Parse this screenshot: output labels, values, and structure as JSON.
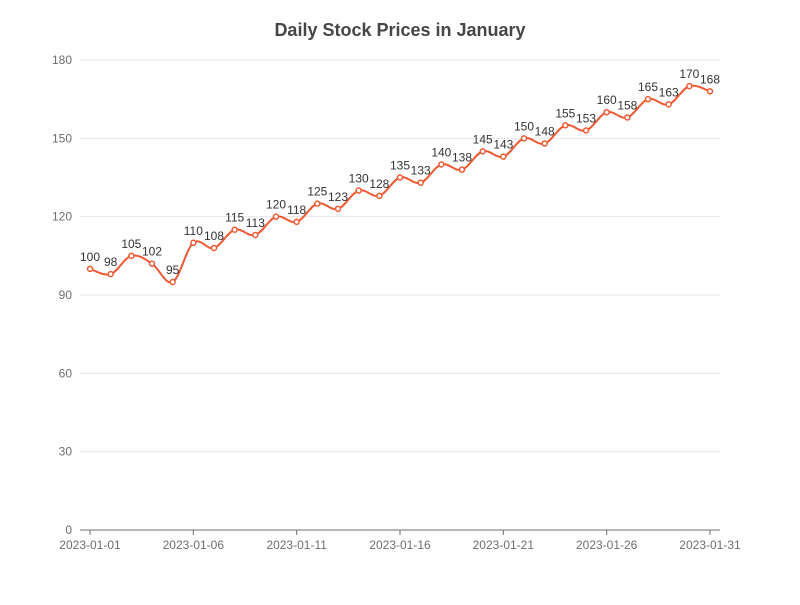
{
  "chart_data": {
    "type": "line",
    "title": "Daily Stock Prices in January",
    "xlabel": "",
    "ylabel": "",
    "ylim": [
      0,
      180
    ],
    "y_ticks": [
      0,
      30,
      60,
      90,
      120,
      150,
      180
    ],
    "x_tick_labels": [
      "2023-01-01",
      "2023-01-06",
      "2023-01-11",
      "2023-01-16",
      "2023-01-21",
      "2023-01-26",
      "2023-01-31"
    ],
    "grid": true,
    "legend": "none",
    "smooth": true,
    "series": [
      {
        "color": "#ee5a34",
        "x": [
          "2023-01-01",
          "2023-01-02",
          "2023-01-03",
          "2023-01-04",
          "2023-01-05",
          "2023-01-06",
          "2023-01-07",
          "2023-01-08",
          "2023-01-09",
          "2023-01-10",
          "2023-01-11",
          "2023-01-12",
          "2023-01-13",
          "2023-01-14",
          "2023-01-15",
          "2023-01-16",
          "2023-01-17",
          "2023-01-18",
          "2023-01-19",
          "2023-01-20",
          "2023-01-21",
          "2023-01-22",
          "2023-01-23",
          "2023-01-24",
          "2023-01-25",
          "2023-01-26",
          "2023-01-27",
          "2023-01-28",
          "2023-01-29",
          "2023-01-30",
          "2023-01-31"
        ],
        "values": [
          100,
          98,
          105,
          102,
          95,
          110,
          108,
          115,
          113,
          120,
          118,
          125,
          123,
          130,
          128,
          135,
          133,
          140,
          138,
          145,
          143,
          150,
          148,
          155,
          153,
          160,
          158,
          165,
          163,
          170,
          168
        ]
      }
    ]
  }
}
